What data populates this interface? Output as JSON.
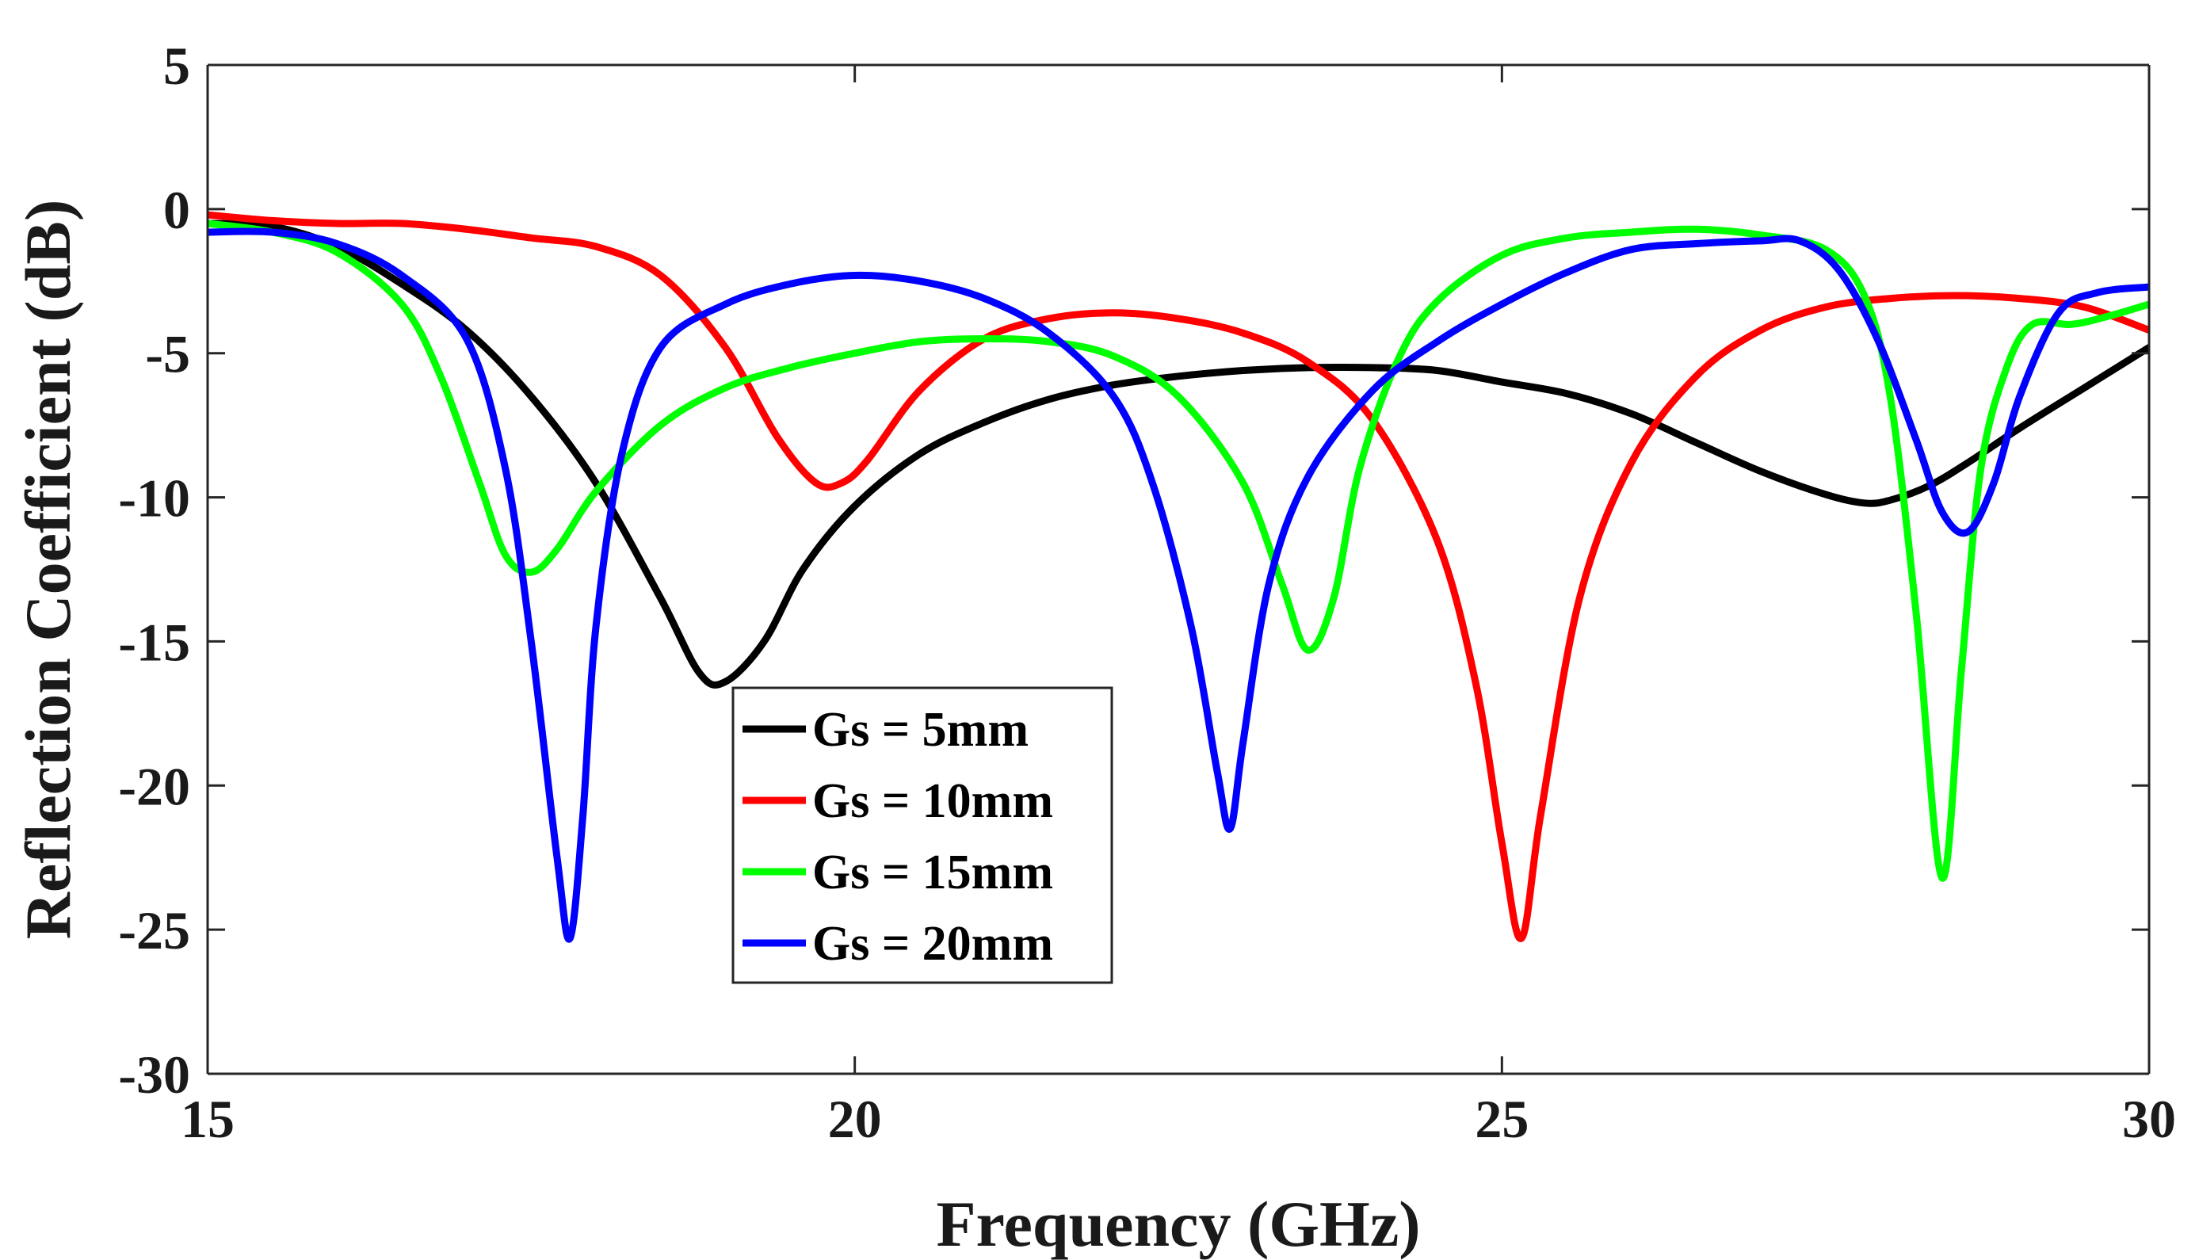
{
  "chart_data": {
    "type": "line",
    "title": "",
    "xlabel": "Frequency (GHz)",
    "ylabel": "Reflection Coefficient (dB)",
    "xlim": [
      15,
      30
    ],
    "ylim": [
      -30,
      5
    ],
    "xticks": [
      15,
      20,
      25,
      30
    ],
    "yticks": [
      5,
      0,
      -5,
      -10,
      -15,
      -20,
      -25,
      -30
    ],
    "xtick_labels": [
      "15",
      "20",
      "25",
      "30"
    ],
    "ytick_labels": [
      "5",
      "0",
      "-5",
      "-10",
      "-15",
      "-20",
      "-25",
      "-30"
    ],
    "grid": true,
    "legend_position": "center",
    "series": [
      {
        "name": "Gs = 5mm",
        "color": "#000000",
        "x": [
          15,
          15.5,
          16,
          16.5,
          17,
          17.5,
          18,
          18.5,
          18.8,
          19,
          19.3,
          19.6,
          20,
          20.5,
          21,
          21.5,
          22,
          22.5,
          23,
          23.5,
          24,
          24.5,
          25,
          25.5,
          26,
          26.5,
          27,
          27.5,
          27.8,
          28,
          28.3,
          28.6,
          29,
          29.5,
          30
        ],
        "y": [
          -0.5,
          -0.6,
          -1.3,
          -2.6,
          -4.2,
          -6.5,
          -9.5,
          -13.5,
          -16.1,
          -16.4,
          -15,
          -12.5,
          -10.3,
          -8.5,
          -7.4,
          -6.6,
          -6.1,
          -5.8,
          -5.6,
          -5.5,
          -5.5,
          -5.6,
          -6.0,
          -6.4,
          -7.1,
          -8.1,
          -9.1,
          -9.9,
          -10.2,
          -10.1,
          -9.6,
          -8.8,
          -7.6,
          -6.2,
          -4.8
        ]
      },
      {
        "name": "Gs = 10mm",
        "color": "#ff0000",
        "x": [
          15,
          15.5,
          16,
          16.5,
          17,
          17.5,
          18,
          18.5,
          19,
          19.4,
          19.7,
          19.9,
          20.1,
          20.5,
          21,
          21.5,
          22,
          22.5,
          23,
          23.5,
          24,
          24.5,
          24.8,
          25,
          25.15,
          25.3,
          25.6,
          26,
          26.5,
          27,
          27.5,
          28,
          28.5,
          29,
          29.5,
          30
        ],
        "y": [
          -0.2,
          -0.4,
          -0.5,
          -0.5,
          -0.7,
          -1.0,
          -1.3,
          -2.3,
          -4.8,
          -7.9,
          -9.5,
          -9.5,
          -8.7,
          -6.3,
          -4.5,
          -3.8,
          -3.6,
          -3.8,
          -4.3,
          -5.3,
          -7.3,
          -11.5,
          -16.5,
          -22.0,
          -25.3,
          -21.0,
          -13.5,
          -8.8,
          -5.8,
          -4.2,
          -3.4,
          -3.1,
          -3.0,
          -3.1,
          -3.4,
          -4.2
        ]
      },
      {
        "name": "Gs = 15mm",
        "color": "#00ff00",
        "x": [
          15,
          15.5,
          16,
          16.5,
          16.8,
          17.1,
          17.3,
          17.5,
          17.7,
          18,
          18.5,
          19,
          19.5,
          20,
          20.5,
          21,
          21.5,
          22,
          22.5,
          23,
          23.3,
          23.5,
          23.7,
          23.9,
          24.2,
          24.5,
          25,
          25.5,
          26,
          26.5,
          27,
          27.5,
          27.8,
          28,
          28.2,
          28.4,
          28.55,
          28.7,
          28.9,
          29.1,
          29.4,
          29.7,
          30
        ],
        "y": [
          -0.5,
          -0.8,
          -1.5,
          -3.3,
          -5.8,
          -9.5,
          -12.0,
          -12.6,
          -11.8,
          -9.8,
          -7.5,
          -6.2,
          -5.5,
          -5.0,
          -4.6,
          -4.5,
          -4.6,
          -5.1,
          -6.5,
          -9.5,
          -13.0,
          -15.3,
          -13.5,
          -9.0,
          -5.2,
          -3.2,
          -1.6,
          -1.0,
          -0.8,
          -0.7,
          -0.9,
          -1.4,
          -3.0,
          -6.5,
          -14.0,
          -23.2,
          -16.0,
          -9.0,
          -5.5,
          -4.0,
          -4.0,
          -3.7,
          -3.3
        ]
      },
      {
        "name": "Gs = 20mm",
        "color": "#0000ff",
        "x": [
          15,
          15.5,
          16,
          16.5,
          17,
          17.3,
          17.5,
          17.7,
          17.8,
          17.9,
          18,
          18.2,
          18.5,
          19,
          19.5,
          20,
          20.5,
          21,
          21.5,
          22,
          22.3,
          22.6,
          22.8,
          22.9,
          23,
          23.2,
          23.5,
          24,
          24.5,
          25,
          25.5,
          26,
          26.5,
          27,
          27.3,
          27.6,
          27.9,
          28.2,
          28.4,
          28.6,
          28.8,
          29,
          29.3,
          29.6,
          30
        ],
        "y": [
          -0.8,
          -0.8,
          -1.2,
          -2.3,
          -4.5,
          -9.0,
          -15.0,
          -22.5,
          -25.3,
          -21.0,
          -14.5,
          -8.5,
          -4.8,
          -3.3,
          -2.6,
          -2.3,
          -2.5,
          -3.1,
          -4.3,
          -6.5,
          -9.5,
          -14.5,
          -19.5,
          -21.5,
          -18.5,
          -13.0,
          -9.3,
          -6.3,
          -4.6,
          -3.3,
          -2.2,
          -1.4,
          -1.2,
          -1.1,
          -1.1,
          -2.1,
          -4.5,
          -8.0,
          -10.5,
          -11.2,
          -9.5,
          -6.5,
          -3.6,
          -2.9,
          -2.7
        ]
      }
    ]
  }
}
